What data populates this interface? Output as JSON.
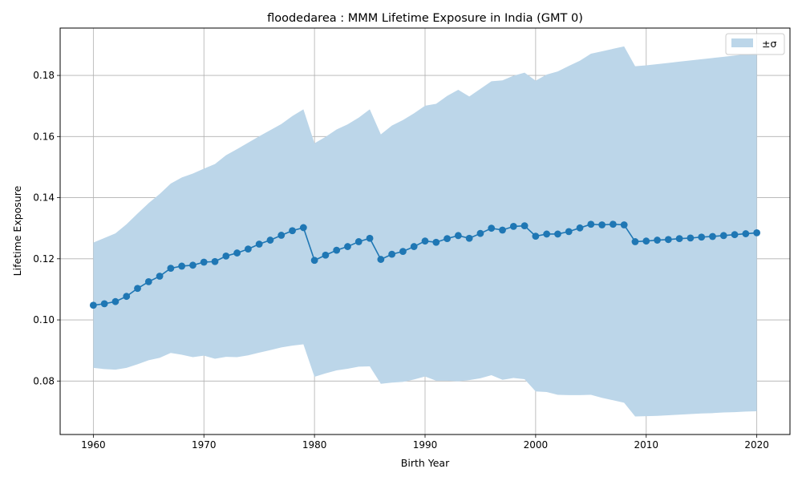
{
  "chart_data": {
    "type": "line",
    "title": "floodedarea : MMM Lifetime Exposure in India (GMT 0)",
    "xlabel": "Birth Year",
    "ylabel": "Lifetime Exposure",
    "xlim": [
      1957,
      2023
    ],
    "ylim": [
      0.0625,
      0.1955
    ],
    "xticks": [
      1960,
      1970,
      1980,
      1990,
      2000,
      2010,
      2020
    ],
    "xtick_labels": [
      "1960",
      "1970",
      "1980",
      "1990",
      "2000",
      "2010",
      "2020"
    ],
    "yticks": [
      0.08,
      0.1,
      0.12,
      0.14,
      0.16,
      0.18
    ],
    "ytick_labels": [
      "0.08",
      "0.10",
      "0.12",
      "0.14",
      "0.16",
      "0.18"
    ],
    "grid": true,
    "legend_position": "top-right",
    "legend": [
      {
        "label": "±σ",
        "color": "#bcd6e9"
      }
    ],
    "colors": {
      "line": "#1f77b4",
      "band": "#bcd6e9"
    },
    "series": [
      {
        "x": [
          1960,
          1961,
          1962,
          1963,
          1964,
          1965,
          1966,
          1967,
          1968,
          1969,
          1970,
          1971,
          1972,
          1973,
          1974,
          1975,
          1976,
          1977,
          1978,
          1979,
          1980,
          1981,
          1982,
          1983,
          1984,
          1985,
          1986,
          1987,
          1988,
          1989,
          1990,
          1991,
          1992,
          1993,
          1994,
          1995,
          1996,
          1997,
          1998,
          1999,
          2000,
          2001,
          2002,
          2003,
          2004,
          2005,
          2006,
          2007,
          2008,
          2009,
          2010,
          2011,
          2012,
          2013,
          2014,
          2015,
          2016,
          2017,
          2018,
          2019,
          2020
        ],
        "values": [
          0.1048,
          0.1053,
          0.106,
          0.1077,
          0.1103,
          0.1125,
          0.1143,
          0.1169,
          0.1176,
          0.1179,
          0.1189,
          0.1191,
          0.1209,
          0.1219,
          0.1232,
          0.1248,
          0.1261,
          0.1277,
          0.1292,
          0.1302,
          0.1195,
          0.1212,
          0.1228,
          0.124,
          0.1256,
          0.1267,
          0.1198,
          0.1215,
          0.1224,
          0.124,
          0.1258,
          0.1254,
          0.1266,
          0.1276,
          0.1267,
          0.1283,
          0.13,
          0.1294,
          0.1306,
          0.1308,
          0.1274,
          0.1281,
          0.1281,
          0.1289,
          0.1301,
          0.1313,
          0.1311,
          0.1313,
          0.1311,
          0.1256,
          0.1258,
          0.1261,
          0.1263,
          0.1266,
          0.1268,
          0.1271,
          0.1273,
          0.1276,
          0.1279,
          0.1282,
          0.1285
        ],
        "upper": [
          0.1253,
          0.1268,
          0.1283,
          0.1313,
          0.1348,
          0.1382,
          0.1412,
          0.1446,
          0.1466,
          0.1479,
          0.1495,
          0.151,
          0.1539,
          0.1559,
          0.158,
          0.1601,
          0.1621,
          0.1641,
          0.1667,
          0.1689,
          0.1578,
          0.1599,
          0.1623,
          0.164,
          0.1662,
          0.1689,
          0.1607,
          0.1636,
          0.1654,
          0.1676,
          0.1701,
          0.1707,
          0.1733,
          0.1753,
          0.1731,
          0.1756,
          0.1781,
          0.1784,
          0.1799,
          0.1809,
          0.1783,
          0.1803,
          0.1813,
          0.1831,
          0.1848,
          0.1871,
          0.1879,
          0.1887,
          0.1895,
          0.183,
          0.1833,
          0.1837,
          0.1841,
          0.1845,
          0.1849,
          0.1853,
          0.1857,
          0.1861,
          0.1865,
          0.1869,
          0.1873
        ],
        "lower": [
          0.0843,
          0.0839,
          0.0837,
          0.0843,
          0.0855,
          0.0868,
          0.0876,
          0.0892,
          0.0886,
          0.0878,
          0.0883,
          0.0873,
          0.0879,
          0.0878,
          0.0884,
          0.0893,
          0.0901,
          0.091,
          0.0916,
          0.092,
          0.0814,
          0.0825,
          0.0835,
          0.084,
          0.0847,
          0.0848,
          0.0791,
          0.0795,
          0.0797,
          0.0805,
          0.0815,
          0.0801,
          0.0801,
          0.0799,
          0.0803,
          0.0809,
          0.0819,
          0.0804,
          0.081,
          0.0806,
          0.0766,
          0.0764,
          0.0755,
          0.0754,
          0.0754,
          0.0755,
          0.0745,
          0.0737,
          0.0729,
          0.0684,
          0.0685,
          0.0686,
          0.0688,
          0.069,
          0.0692,
          0.0694,
          0.0695,
          0.0697,
          0.0698,
          0.07,
          0.0701
        ]
      }
    ]
  }
}
